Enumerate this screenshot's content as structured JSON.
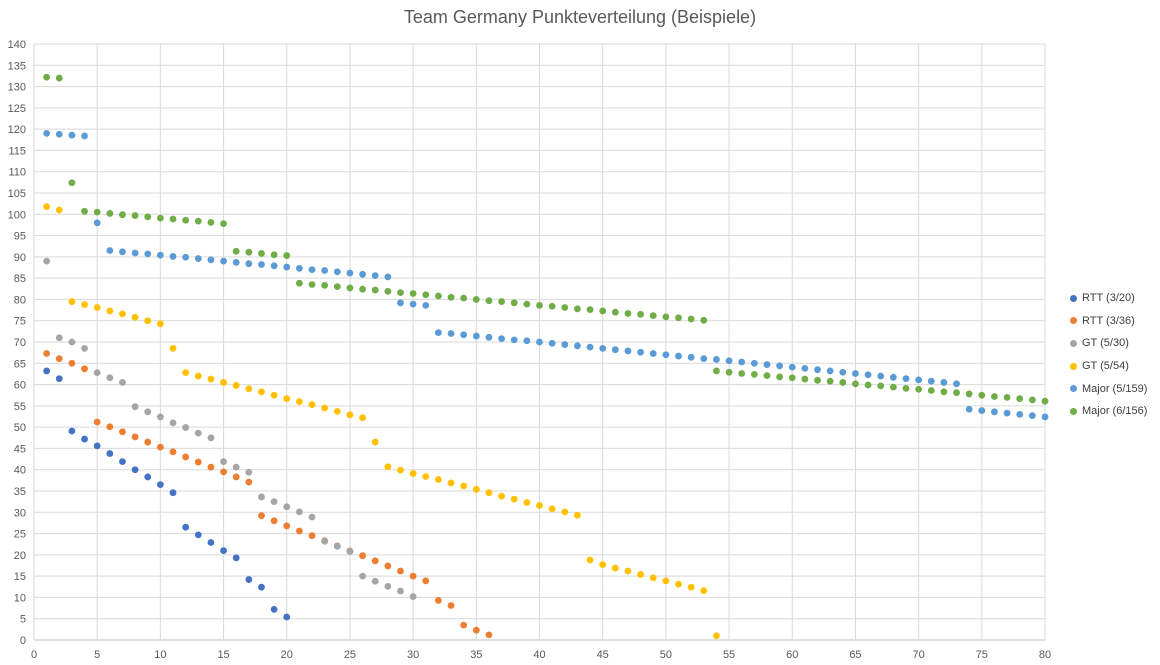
{
  "chart_data": {
    "type": "scatter",
    "title": "Team Germany Punkteverteilung (Beispiele)",
    "xlabel": "",
    "ylabel": "",
    "xlim": [
      0,
      80
    ],
    "ylim": [
      0,
      140
    ],
    "x_ticks": [
      0,
      5,
      10,
      15,
      20,
      25,
      30,
      35,
      40,
      45,
      50,
      55,
      60,
      65,
      70,
      75,
      80
    ],
    "y_ticks": [
      0,
      5,
      10,
      15,
      20,
      25,
      30,
      35,
      40,
      45,
      50,
      55,
      60,
      65,
      70,
      75,
      80,
      85,
      90,
      95,
      100,
      105,
      110,
      115,
      120,
      125,
      130,
      135,
      140
    ],
    "grid": "horizontal and vertical gridlines",
    "legend_position": "right",
    "series": [
      {
        "name": "RTT (3/20)",
        "color": "#4472C4",
        "points": [
          [
            1,
            63.2
          ],
          [
            2,
            61.4
          ],
          [
            3,
            49.1
          ],
          [
            4,
            47.2
          ],
          [
            5,
            45.6
          ],
          [
            6,
            43.8
          ],
          [
            7,
            41.9
          ],
          [
            8,
            40.0
          ],
          [
            9,
            38.3
          ],
          [
            10,
            36.5
          ],
          [
            11,
            34.6
          ],
          [
            12,
            26.5
          ],
          [
            13,
            24.7
          ],
          [
            14,
            22.9
          ],
          [
            15,
            21.0
          ],
          [
            16,
            19.3
          ],
          [
            17,
            14.2
          ],
          [
            18,
            12.4
          ],
          [
            19,
            7.2
          ],
          [
            20,
            5.4
          ]
        ]
      },
      {
        "name": "RTT (3/36)",
        "color": "#ED7D31",
        "points": [
          [
            1,
            67.3
          ],
          [
            2,
            66.1
          ],
          [
            3,
            65.0
          ],
          [
            4,
            63.7
          ],
          [
            5,
            51.2
          ],
          [
            6,
            50.1
          ],
          [
            7,
            48.9
          ],
          [
            8,
            47.7
          ],
          [
            9,
            46.5
          ],
          [
            10,
            45.3
          ],
          [
            11,
            44.2
          ],
          [
            12,
            43.0
          ],
          [
            13,
            41.8
          ],
          [
            14,
            40.6
          ],
          [
            15,
            39.5
          ],
          [
            16,
            38.3
          ],
          [
            17,
            37.1
          ],
          [
            18,
            29.2
          ],
          [
            19,
            28.0
          ],
          [
            20,
            26.8
          ],
          [
            21,
            25.6
          ],
          [
            22,
            24.5
          ],
          [
            23,
            23.3
          ],
          [
            24,
            22.1
          ],
          [
            25,
            20.9
          ],
          [
            26,
            19.8
          ],
          [
            27,
            18.6
          ],
          [
            28,
            17.4
          ],
          [
            29,
            16.2
          ],
          [
            30,
            15.0
          ],
          [
            31,
            13.9
          ],
          [
            32,
            9.3
          ],
          [
            33,
            8.1
          ],
          [
            34,
            3.5
          ],
          [
            35,
            2.3
          ],
          [
            36,
            1.2
          ]
        ]
      },
      {
        "name": "GT (5/30)",
        "color": "#A5A5A5",
        "points": [
          [
            1,
            89.0
          ],
          [
            2,
            71.0
          ],
          [
            3,
            70.0
          ],
          [
            4,
            68.5
          ],
          [
            5,
            62.8
          ],
          [
            6,
            61.6
          ],
          [
            7,
            60.5
          ],
          [
            8,
            54.8
          ],
          [
            9,
            53.6
          ],
          [
            10,
            52.4
          ],
          [
            11,
            51.0
          ],
          [
            12,
            49.9
          ],
          [
            13,
            48.6
          ],
          [
            14,
            47.5
          ],
          [
            15,
            41.9
          ],
          [
            16,
            40.6
          ],
          [
            17,
            39.4
          ],
          [
            18,
            33.6
          ],
          [
            19,
            32.5
          ],
          [
            20,
            31.3
          ],
          [
            21,
            30.1
          ],
          [
            22,
            28.9
          ],
          [
            23,
            23.2
          ],
          [
            24,
            22.0
          ],
          [
            25,
            20.8
          ],
          [
            26,
            15.0
          ],
          [
            27,
            13.8
          ],
          [
            28,
            12.6
          ],
          [
            29,
            11.5
          ],
          [
            30,
            10.2
          ]
        ]
      },
      {
        "name": "GT (5/54)",
        "color": "#FFC000",
        "points": [
          [
            1,
            101.8
          ],
          [
            2,
            101.0
          ],
          [
            3,
            79.5
          ],
          [
            4,
            78.8
          ],
          [
            5,
            78.1
          ],
          [
            6,
            77.3
          ],
          [
            7,
            76.6
          ],
          [
            8,
            75.8
          ],
          [
            9,
            75.0
          ],
          [
            10,
            74.3
          ],
          [
            11,
            68.5
          ],
          [
            12,
            62.8
          ],
          [
            13,
            62.0
          ],
          [
            14,
            61.3
          ],
          [
            15,
            60.5
          ],
          [
            16,
            59.8
          ],
          [
            17,
            59.0
          ],
          [
            18,
            58.3
          ],
          [
            19,
            57.5
          ],
          [
            20,
            56.7
          ],
          [
            21,
            56.0
          ],
          [
            22,
            55.3
          ],
          [
            23,
            54.5
          ],
          [
            24,
            53.7
          ],
          [
            25,
            52.9
          ],
          [
            26,
            52.2
          ],
          [
            27,
            46.5
          ],
          [
            28,
            40.7
          ],
          [
            29,
            39.9
          ],
          [
            30,
            39.1
          ],
          [
            31,
            38.4
          ],
          [
            32,
            37.7
          ],
          [
            33,
            36.9
          ],
          [
            34,
            36.2
          ],
          [
            35,
            35.4
          ],
          [
            36,
            34.6
          ],
          [
            37,
            33.8
          ],
          [
            38,
            33.1
          ],
          [
            39,
            32.3
          ],
          [
            40,
            31.6
          ],
          [
            41,
            30.8
          ],
          [
            42,
            30.1
          ],
          [
            43,
            29.3
          ],
          [
            44,
            18.8
          ],
          [
            45,
            17.7
          ],
          [
            46,
            16.9
          ],
          [
            47,
            16.2
          ],
          [
            48,
            15.4
          ],
          [
            49,
            14.6
          ],
          [
            50,
            13.9
          ],
          [
            51,
            13.1
          ],
          [
            52,
            12.4
          ],
          [
            53,
            11.6
          ],
          [
            54,
            1.0
          ]
        ]
      },
      {
        "name": "Major (5/159)",
        "color": "#5B9BD5",
        "points": [
          [
            1,
            119.0
          ],
          [
            2,
            118.8
          ],
          [
            3,
            118.6
          ],
          [
            4,
            118.4
          ],
          [
            5,
            98.0
          ],
          [
            6,
            91.5
          ],
          [
            7,
            91.2
          ],
          [
            8,
            90.9
          ],
          [
            9,
            90.7
          ],
          [
            10,
            90.4
          ],
          [
            11,
            90.1
          ],
          [
            12,
            89.9
          ],
          [
            13,
            89.6
          ],
          [
            14,
            89.3
          ],
          [
            15,
            89.0
          ],
          [
            16,
            88.7
          ],
          [
            17,
            88.4
          ],
          [
            18,
            88.2
          ],
          [
            19,
            87.9
          ],
          [
            20,
            87.6
          ],
          [
            21,
            87.3
          ],
          [
            22,
            87.0
          ],
          [
            23,
            86.8
          ],
          [
            24,
            86.5
          ],
          [
            25,
            86.2
          ],
          [
            26,
            85.9
          ],
          [
            27,
            85.6
          ],
          [
            28,
            85.3
          ],
          [
            29,
            79.2
          ],
          [
            30,
            78.9
          ],
          [
            31,
            78.6
          ],
          [
            32,
            72.2
          ],
          [
            33,
            72.0
          ],
          [
            34,
            71.7
          ],
          [
            35,
            71.4
          ],
          [
            36,
            71.1
          ],
          [
            37,
            70.8
          ],
          [
            38,
            70.5
          ],
          [
            39,
            70.3
          ],
          [
            40,
            70.0
          ],
          [
            41,
            69.7
          ],
          [
            42,
            69.4
          ],
          [
            43,
            69.1
          ],
          [
            44,
            68.8
          ],
          [
            45,
            68.5
          ],
          [
            46,
            68.2
          ],
          [
            47,
            67.9
          ],
          [
            48,
            67.6
          ],
          [
            49,
            67.3
          ],
          [
            50,
            67.0
          ],
          [
            51,
            66.7
          ],
          [
            52,
            66.4
          ],
          [
            53,
            66.1
          ],
          [
            54,
            65.9
          ],
          [
            55,
            65.6
          ],
          [
            56,
            65.3
          ],
          [
            57,
            65.0
          ],
          [
            58,
            64.7
          ],
          [
            59,
            64.4
          ],
          [
            60,
            64.1
          ],
          [
            61,
            63.8
          ],
          [
            62,
            63.5
          ],
          [
            63,
            63.2
          ],
          [
            64,
            62.9
          ],
          [
            65,
            62.6
          ],
          [
            66,
            62.3
          ],
          [
            67,
            62.0
          ],
          [
            68,
            61.7
          ],
          [
            69,
            61.4
          ],
          [
            70,
            61.1
          ],
          [
            71,
            60.8
          ],
          [
            72,
            60.5
          ],
          [
            73,
            60.2
          ],
          [
            74,
            54.2
          ],
          [
            75,
            53.9
          ],
          [
            76,
            53.6
          ],
          [
            77,
            53.3
          ],
          [
            78,
            53.0
          ],
          [
            79,
            52.7
          ],
          [
            80,
            52.4
          ]
        ]
      },
      {
        "name": "Major (6/156)",
        "color": "#70AD47",
        "points": [
          [
            1,
            132.2
          ],
          [
            2,
            132.0
          ],
          [
            3,
            107.4
          ],
          [
            4,
            100.7
          ],
          [
            5,
            100.5
          ],
          [
            6,
            100.2
          ],
          [
            7,
            99.9
          ],
          [
            8,
            99.7
          ],
          [
            9,
            99.4
          ],
          [
            10,
            99.1
          ],
          [
            11,
            98.9
          ],
          [
            12,
            98.6
          ],
          [
            13,
            98.4
          ],
          [
            14,
            98.1
          ],
          [
            15,
            97.8
          ],
          [
            16,
            91.3
          ],
          [
            17,
            91.1
          ],
          [
            18,
            90.8
          ],
          [
            19,
            90.5
          ],
          [
            20,
            90.3
          ],
          [
            21,
            83.8
          ],
          [
            22,
            83.5
          ],
          [
            23,
            83.3
          ],
          [
            24,
            83.0
          ],
          [
            25,
            82.7
          ],
          [
            26,
            82.4
          ],
          [
            27,
            82.2
          ],
          [
            28,
            81.9
          ],
          [
            29,
            81.6
          ],
          [
            30,
            81.4
          ],
          [
            31,
            81.1
          ],
          [
            32,
            80.8
          ],
          [
            33,
            80.5
          ],
          [
            34,
            80.3
          ],
          [
            35,
            80.0
          ],
          [
            36,
            79.7
          ],
          [
            37,
            79.5
          ],
          [
            38,
            79.2
          ],
          [
            39,
            78.9
          ],
          [
            40,
            78.6
          ],
          [
            41,
            78.4
          ],
          [
            42,
            78.1
          ],
          [
            43,
            77.8
          ],
          [
            44,
            77.6
          ],
          [
            45,
            77.3
          ],
          [
            46,
            77.0
          ],
          [
            47,
            76.7
          ],
          [
            48,
            76.5
          ],
          [
            49,
            76.2
          ],
          [
            50,
            75.9
          ],
          [
            51,
            75.7
          ],
          [
            52,
            75.4
          ],
          [
            53,
            75.1
          ],
          [
            54,
            63.2
          ],
          [
            55,
            62.9
          ],
          [
            56,
            62.6
          ],
          [
            57,
            62.4
          ],
          [
            58,
            62.1
          ],
          [
            59,
            61.8
          ],
          [
            60,
            61.6
          ],
          [
            61,
            61.3
          ],
          [
            62,
            61.0
          ],
          [
            63,
            60.8
          ],
          [
            64,
            60.5
          ],
          [
            65,
            60.2
          ],
          [
            66,
            59.9
          ],
          [
            67,
            59.7
          ],
          [
            68,
            59.4
          ],
          [
            69,
            59.1
          ],
          [
            70,
            58.9
          ],
          [
            71,
            58.6
          ],
          [
            72,
            58.3
          ],
          [
            73,
            58.1
          ],
          [
            74,
            57.8
          ],
          [
            75,
            57.5
          ],
          [
            76,
            57.2
          ],
          [
            77,
            57.0
          ],
          [
            78,
            56.7
          ],
          [
            79,
            56.4
          ],
          [
            80,
            56.1
          ]
        ]
      }
    ]
  }
}
